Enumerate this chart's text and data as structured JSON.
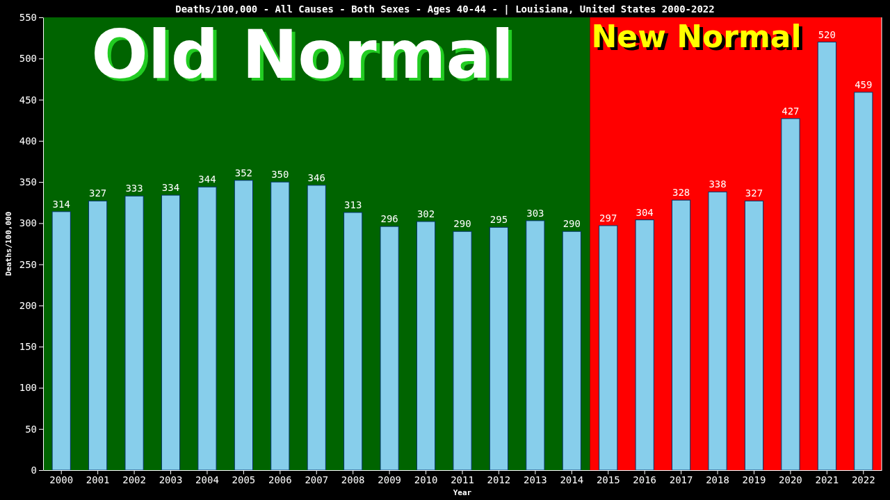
{
  "chart_data": {
    "type": "bar",
    "title": "Deaths/100,000 - All Causes - Both Sexes - Ages 40-44 -  | Louisiana, United States 2000-2022",
    "xlabel": "Year",
    "ylabel": "Deaths/100,000",
    "categories": [
      "2000",
      "2001",
      "2002",
      "2003",
      "2004",
      "2005",
      "2006",
      "2007",
      "2008",
      "2009",
      "2010",
      "2011",
      "2012",
      "2013",
      "2014",
      "2015",
      "2016",
      "2017",
      "2018",
      "2019",
      "2020",
      "2021",
      "2022"
    ],
    "values": [
      314,
      327,
      333,
      334,
      344,
      352,
      350,
      346,
      313,
      296,
      302,
      290,
      295,
      303,
      290,
      297,
      304,
      328,
      338,
      327,
      427,
      520,
      459
    ],
    "color": "#87ceeb",
    "data_labels": true,
    "grid": false,
    "ylim": [
      0,
      550
    ],
    "yticks": [
      0,
      50,
      100,
      150,
      200,
      250,
      300,
      350,
      400,
      450,
      500,
      550
    ],
    "bands": [
      {
        "axis": "x",
        "from": "2000",
        "to": "2014",
        "label": "Old Normal",
        "color": "#006400"
      },
      {
        "axis": "x",
        "from": "2015",
        "to": "2022",
        "label": "New Normal",
        "color": "#ff0000"
      }
    ]
  }
}
